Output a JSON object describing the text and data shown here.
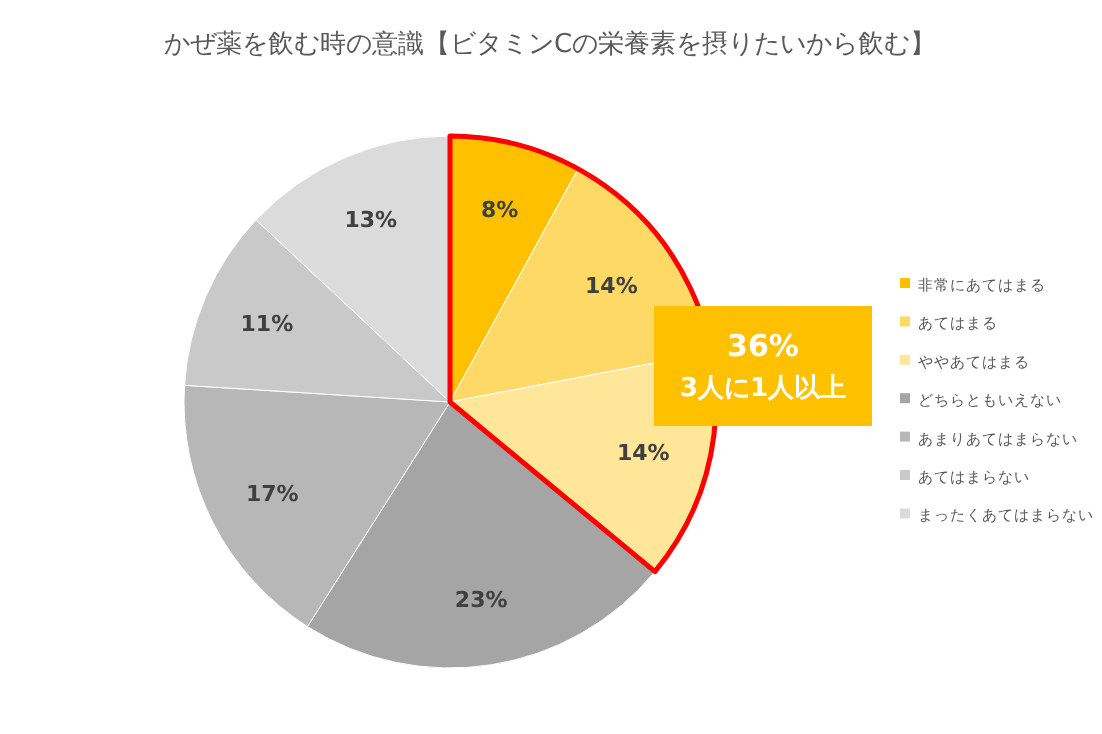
{
  "chart_data": {
    "type": "pie",
    "title": "かぜ薬を飲む時の意識【ビタミンCの栄養素を摂りたいから飲む】",
    "categories": [
      "非常にあてはまる",
      "あてはまる",
      "ややあてはまる",
      "どちらともいえない",
      "あまりあてはまらない",
      "あてはまらない",
      "まったくあてはまらない"
    ],
    "values": [
      8,
      14,
      14,
      23,
      17,
      11,
      13
    ],
    "colors": [
      "#ffc000",
      "#ffd966",
      "#ffe699",
      "#a5a5a5",
      "#b7b7b7",
      "#c9c9c9",
      "#dbdbdb"
    ],
    "value_labels": [
      "8%",
      "14%",
      "14%",
      "23%",
      "17%",
      "11%",
      "13%"
    ],
    "legend": "right",
    "annotations": [
      "36%",
      "3人に1人以上"
    ]
  }
}
